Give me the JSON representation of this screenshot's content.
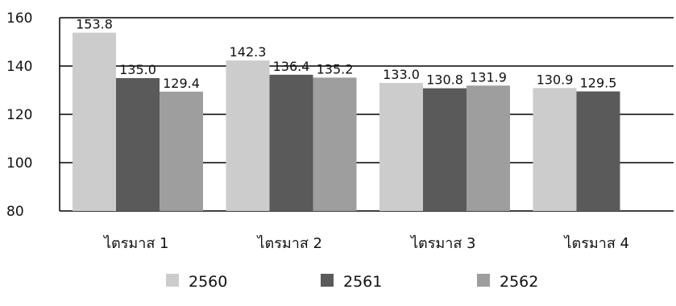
{
  "chart_data": {
    "type": "bar",
    "categories": [
      "ไตรมาส 1",
      "ไตรมาส 2",
      "ไตรมาส 3",
      "ไตรมาส 4"
    ],
    "series": [
      {
        "name": "2560",
        "values": [
          153.8,
          142.3,
          133.0,
          130.9
        ],
        "color": "#cccccc"
      },
      {
        "name": "2561",
        "values": [
          135.0,
          136.4,
          130.8,
          129.5
        ],
        "color": "#5a5a5a"
      },
      {
        "name": "2562",
        "values": [
          129.4,
          135.2,
          131.9,
          null
        ],
        "color": "#9e9e9e"
      }
    ],
    "data_labels": [
      [
        "153.8",
        "142.3",
        "133.0",
        "130.9"
      ],
      [
        "135.0",
        "136.4",
        "130.8",
        "129.5"
      ],
      [
        "129.4",
        "135.2",
        "131.9",
        ""
      ]
    ],
    "ylim": [
      80,
      160
    ],
    "yticks": [
      80,
      100,
      120,
      140,
      160
    ],
    "ytick_labels": [
      "80",
      "100",
      "120",
      "140",
      "160"
    ],
    "grid": true,
    "legend_position": "bottom"
  }
}
